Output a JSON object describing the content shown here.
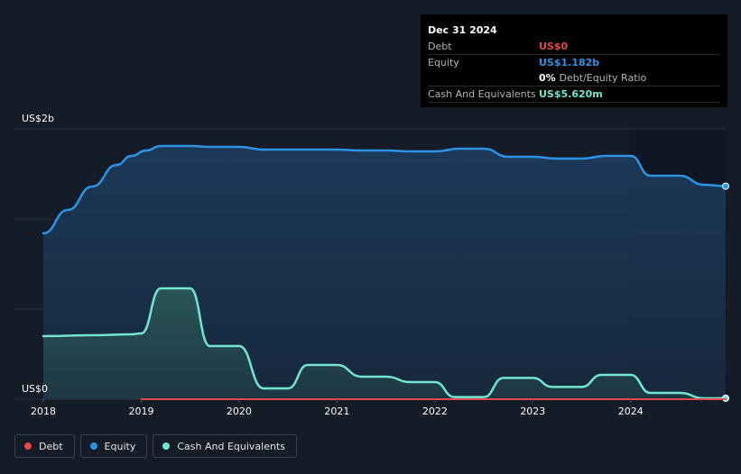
{
  "tooltip": {
    "date": "Dec 31 2024",
    "rows": [
      {
        "label": "Debt",
        "value": "US$0"
      },
      {
        "label": "Equity",
        "value": "US$1.182b"
      },
      {
        "label": "",
        "value": "0%",
        "suffix": "Debt/Equity Ratio"
      },
      {
        "label": "Cash And Equivalents",
        "value": "US$5.620m"
      }
    ]
  },
  "legend": {
    "items": [
      {
        "label": "Debt",
        "color": "#e64747"
      },
      {
        "label": "Equity",
        "color": "#2b94e4"
      },
      {
        "label": "Cash And Equivalents",
        "color": "#72e6cf"
      }
    ]
  },
  "colors": {
    "background": "#151b27",
    "debt": "#e64747",
    "equity": "#2b94e4",
    "cash": "#72e6cf"
  },
  "chart_data": {
    "type": "area",
    "y_top_label": "US$2b",
    "y_bottom_label": "US$0",
    "ylim": [
      0,
      1.5
    ],
    "x_ticks": [
      "2018",
      "2019",
      "2020",
      "2021",
      "2022",
      "2023",
      "2024"
    ],
    "xlim": [
      2018,
      2024.97
    ],
    "grid": true,
    "legend_position": "bottom-left",
    "series": [
      {
        "name": "Equity",
        "color": "#2b94e4",
        "x": [
          2018.0,
          2018.25,
          2018.5,
          2018.75,
          2018.9,
          2019.05,
          2019.2,
          2019.5,
          2019.7,
          2020.0,
          2020.25,
          2020.5,
          2020.75,
          2021.0,
          2021.25,
          2021.5,
          2021.75,
          2022.0,
          2022.25,
          2022.5,
          2022.75,
          2023.0,
          2023.25,
          2023.5,
          2023.75,
          2024.0,
          2024.2,
          2024.5,
          2024.75,
          2024.97
        ],
        "values": [
          0.92,
          1.05,
          1.18,
          1.3,
          1.35,
          1.38,
          1.405,
          1.405,
          1.4,
          1.4,
          1.385,
          1.385,
          1.385,
          1.385,
          1.38,
          1.38,
          1.375,
          1.375,
          1.39,
          1.39,
          1.345,
          1.345,
          1.335,
          1.335,
          1.35,
          1.35,
          1.24,
          1.24,
          1.19,
          1.182
        ]
      },
      {
        "name": "Cash And Equivalents",
        "color": "#72e6cf",
        "x": [
          2018.0,
          2018.5,
          2018.9,
          2019.0,
          2019.2,
          2019.5,
          2019.7,
          2020.0,
          2020.25,
          2020.5,
          2020.7,
          2021.0,
          2021.25,
          2021.5,
          2021.75,
          2022.0,
          2022.2,
          2022.5,
          2022.7,
          2023.0,
          2023.2,
          2023.5,
          2023.7,
          2024.0,
          2024.2,
          2024.5,
          2024.75,
          2024.97
        ],
        "values": [
          0.35,
          0.355,
          0.36,
          0.365,
          0.615,
          0.615,
          0.295,
          0.295,
          0.06,
          0.06,
          0.19,
          0.19,
          0.125,
          0.125,
          0.095,
          0.095,
          0.012,
          0.012,
          0.118,
          0.118,
          0.068,
          0.068,
          0.135,
          0.135,
          0.035,
          0.035,
          0.005,
          0.0056
        ]
      },
      {
        "name": "Debt",
        "color": "#e64747",
        "x": [
          2019.0,
          2024.97
        ],
        "values": [
          0,
          0
        ]
      }
    ]
  }
}
